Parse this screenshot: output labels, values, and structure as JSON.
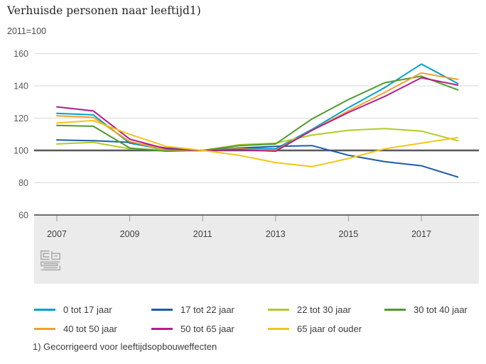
{
  "chart_data": {
    "type": "line",
    "title": "Verhuisde personen naar leeftijd1)",
    "subtitle": "2011=100",
    "footnote": "1) Gecorrigeerd voor leeftijdsopbouweffecten",
    "x": [
      2007,
      2008,
      2009,
      2010,
      2011,
      2012,
      2013,
      2014,
      2015,
      2016,
      2017,
      2018
    ],
    "xticks": [
      2007,
      2009,
      2011,
      2013,
      2015,
      2017
    ],
    "ylim": [
      60,
      160
    ],
    "yticks": [
      60,
      80,
      100,
      120,
      140,
      160
    ],
    "baseline": 100,
    "grid": true,
    "legend_position": "bottom",
    "colors": {
      "grid": "#d9d9d9",
      "baseline": "#58585b",
      "axis": "#58585b",
      "band": "#ebebeb",
      "tick": "#9b9b9b",
      "tick_label": "#404040",
      "ytick_label": "#595959",
      "logo": "#a8a8a8"
    },
    "series": [
      {
        "name": "0 tot 17 jaar",
        "color": "#00a1cd",
        "values": [
          123,
          122,
          104.5,
          100.5,
          100,
          101.5,
          101,
          113,
          126.5,
          139,
          153.5,
          141.5
        ]
      },
      {
        "name": "17 tot 22 jaar",
        "color": "#1e5bac",
        "values": [
          106.5,
          106,
          105,
          101.5,
          100,
          101.5,
          102.5,
          103,
          97,
          93,
          90.5,
          83.5
        ]
      },
      {
        "name": "22 tot 30 jaar",
        "color": "#b0cc23",
        "values": [
          104,
          105,
          101,
          100.5,
          100,
          103.5,
          104.5,
          109.5,
          112.5,
          113.5,
          112,
          106
        ]
      },
      {
        "name": "30 tot 40 jaar",
        "color": "#4f9b2e",
        "values": [
          115.5,
          115,
          101.5,
          99.5,
          100,
          103,
          104,
          119.5,
          131.5,
          142,
          146,
          137.5
        ]
      },
      {
        "name": "40 tot 50 jaar",
        "color": "#f1a02a",
        "values": [
          121.5,
          120.5,
          105.5,
          100.5,
          100,
          101,
          100,
          112.5,
          124.5,
          136,
          148,
          144
        ]
      },
      {
        "name": "50 tot 65 jaar",
        "color": "#b41e8a",
        "values": [
          127,
          124.5,
          107,
          101,
          100,
          100.5,
          99.5,
          112.5,
          123.5,
          133.5,
          145,
          140.5
        ]
      },
      {
        "name": "65 jaar of ouder",
        "color": "#f3c618",
        "values": [
          117,
          118.5,
          110,
          102.5,
          100,
          97,
          92.5,
          90,
          95,
          101,
          104.5,
          108
        ]
      }
    ]
  }
}
